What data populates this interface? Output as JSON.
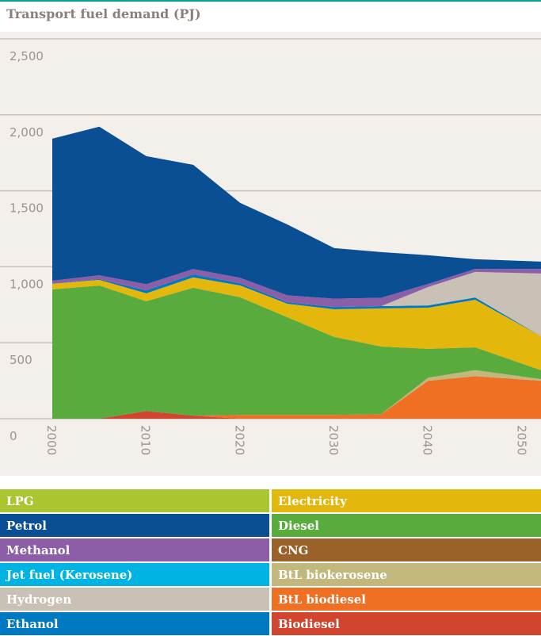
{
  "chart_data": {
    "type": "stacked_area",
    "title": "Transport fuel demand (PJ)",
    "x": [
      2000,
      2005,
      2010,
      2015,
      2020,
      2025,
      2030,
      2035,
      2040,
      2045,
      2052
    ],
    "xlim": [
      2000,
      2052
    ],
    "xticks": [
      2000,
      2010,
      2020,
      2030,
      2040,
      2050
    ],
    "ylim": [
      0,
      2500
    ],
    "yticks": [
      0,
      500,
      {
        "value": 1000,
        "label": "1,000"
      },
      {
        "value": 1500,
        "label": "1,500"
      },
      {
        "value": 2000,
        "label": "2,000"
      },
      {
        "value": 2500,
        "label": "2,500"
      }
    ],
    "grid": true,
    "series": [
      {
        "name": "Biodiesel",
        "color": "#d1452e",
        "values": [
          0,
          0,
          50,
          20,
          0,
          0,
          0,
          0,
          0,
          0,
          0
        ]
      },
      {
        "name": "BtL biodiesel",
        "color": "#f07023",
        "values": [
          0,
          0,
          0,
          0,
          25,
          25,
          25,
          30,
          250,
          280,
          250
        ]
      },
      {
        "name": "BtL biokerosene",
        "color": "#c2b87e",
        "values": [
          0,
          0,
          0,
          0,
          0,
          0,
          0,
          0,
          20,
          40,
          10
        ]
      },
      {
        "name": "Diesel",
        "color": "#5aab3e",
        "values": [
          851,
          877,
          723,
          842,
          774,
          643,
          513,
          445,
          190,
          150,
          59
        ]
      },
      {
        "name": "LPG",
        "color": "#a9c52f",
        "values": [
          0,
          0,
          0,
          0,
          0,
          0,
          0,
          0,
          0,
          0,
          0
        ]
      },
      {
        "name": "Electricity",
        "color": "#e3b70c",
        "values": [
          37,
          37,
          52,
          68,
          78,
          89,
          182,
          251,
          271,
          313,
          224
        ]
      },
      {
        "name": "Jet fuel (Kerosene)",
        "color": "#00b3e3",
        "values": [
          0,
          0,
          0,
          0,
          0,
          0,
          0,
          0,
          0,
          0,
          0
        ]
      },
      {
        "name": "Ethanol",
        "color": "#0079c1",
        "values": [
          0,
          5,
          20,
          20,
          15,
          10,
          15,
          15,
          15,
          15,
          0
        ]
      },
      {
        "name": "CNG",
        "color": "#9a6128",
        "values": [
          0,
          0,
          0,
          0,
          0,
          0,
          0,
          0,
          0,
          0,
          0
        ]
      },
      {
        "name": "Hydrogen",
        "color": "#c9c0b6",
        "values": [
          0,
          0,
          0,
          0,
          0,
          0,
          0,
          0,
          121,
          168,
          413
        ]
      },
      {
        "name": "Methanol",
        "color": "#8d5ea8",
        "values": [
          20,
          25,
          40,
          35,
          35,
          45,
          55,
          55,
          20,
          20,
          30
        ]
      },
      {
        "name": "Petrol",
        "color": "#0a4f94",
        "values": [
          935,
          978,
          843,
          686,
          493,
          467,
          333,
          301,
          189,
          64,
          48
        ]
      }
    ]
  }
}
